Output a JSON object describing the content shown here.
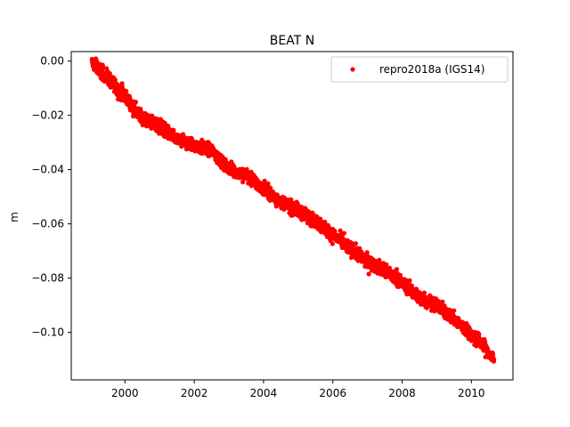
{
  "chart_data": {
    "type": "scatter",
    "title": "BEAT N",
    "xlabel": "",
    "ylabel": "m",
    "xlim": [
      1998.45,
      2011.2
    ],
    "ylim": [
      -0.1175,
      0.0035
    ],
    "xticks": [
      2000,
      2002,
      2004,
      2006,
      2008,
      2010
    ],
    "xtick_labels": [
      "2000",
      "2002",
      "2004",
      "2006",
      "2008",
      "2010"
    ],
    "yticks": [
      0.0,
      -0.02,
      -0.04,
      -0.06,
      -0.08,
      -0.1
    ],
    "ytick_labels": [
      "0.00",
      "−0.02",
      "−0.04",
      "−0.06",
      "−0.08",
      "−0.10"
    ],
    "grid": false,
    "legend_position": "top-right",
    "colors": {
      "series": "#ff0000",
      "axes": "#000000",
      "background": "#ffffff"
    },
    "series": [
      {
        "name": "repro2018a (IGS14)",
        "x_range": [
          1999.05,
          2010.65
        ],
        "trend_points": [
          {
            "x": 1999.05,
            "y": -0.0005
          },
          {
            "x": 1999.5,
            "y": -0.006
          },
          {
            "x": 2000.0,
            "y": -0.013
          },
          {
            "x": 2000.5,
            "y": -0.021
          },
          {
            "x": 2001.0,
            "y": -0.024
          },
          {
            "x": 2001.5,
            "y": -0.029
          },
          {
            "x": 2002.0,
            "y": -0.031
          },
          {
            "x": 2002.5,
            "y": -0.033
          },
          {
            "x": 2003.0,
            "y": -0.04
          },
          {
            "x": 2003.5,
            "y": -0.042
          },
          {
            "x": 2004.0,
            "y": -0.047
          },
          {
            "x": 2004.5,
            "y": -0.052
          },
          {
            "x": 2005.0,
            "y": -0.055
          },
          {
            "x": 2005.5,
            "y": -0.059
          },
          {
            "x": 2006.0,
            "y": -0.064
          },
          {
            "x": 2006.5,
            "y": -0.069
          },
          {
            "x": 2007.0,
            "y": -0.074
          },
          {
            "x": 2007.5,
            "y": -0.077
          },
          {
            "x": 2008.0,
            "y": -0.082
          },
          {
            "x": 2008.5,
            "y": -0.087
          },
          {
            "x": 2009.0,
            "y": -0.09
          },
          {
            "x": 2009.5,
            "y": -0.095
          },
          {
            "x": 2010.0,
            "y": -0.101
          },
          {
            "x": 2010.3,
            "y": -0.104
          },
          {
            "x": 2010.65,
            "y": -0.11
          }
        ]
      }
    ]
  }
}
